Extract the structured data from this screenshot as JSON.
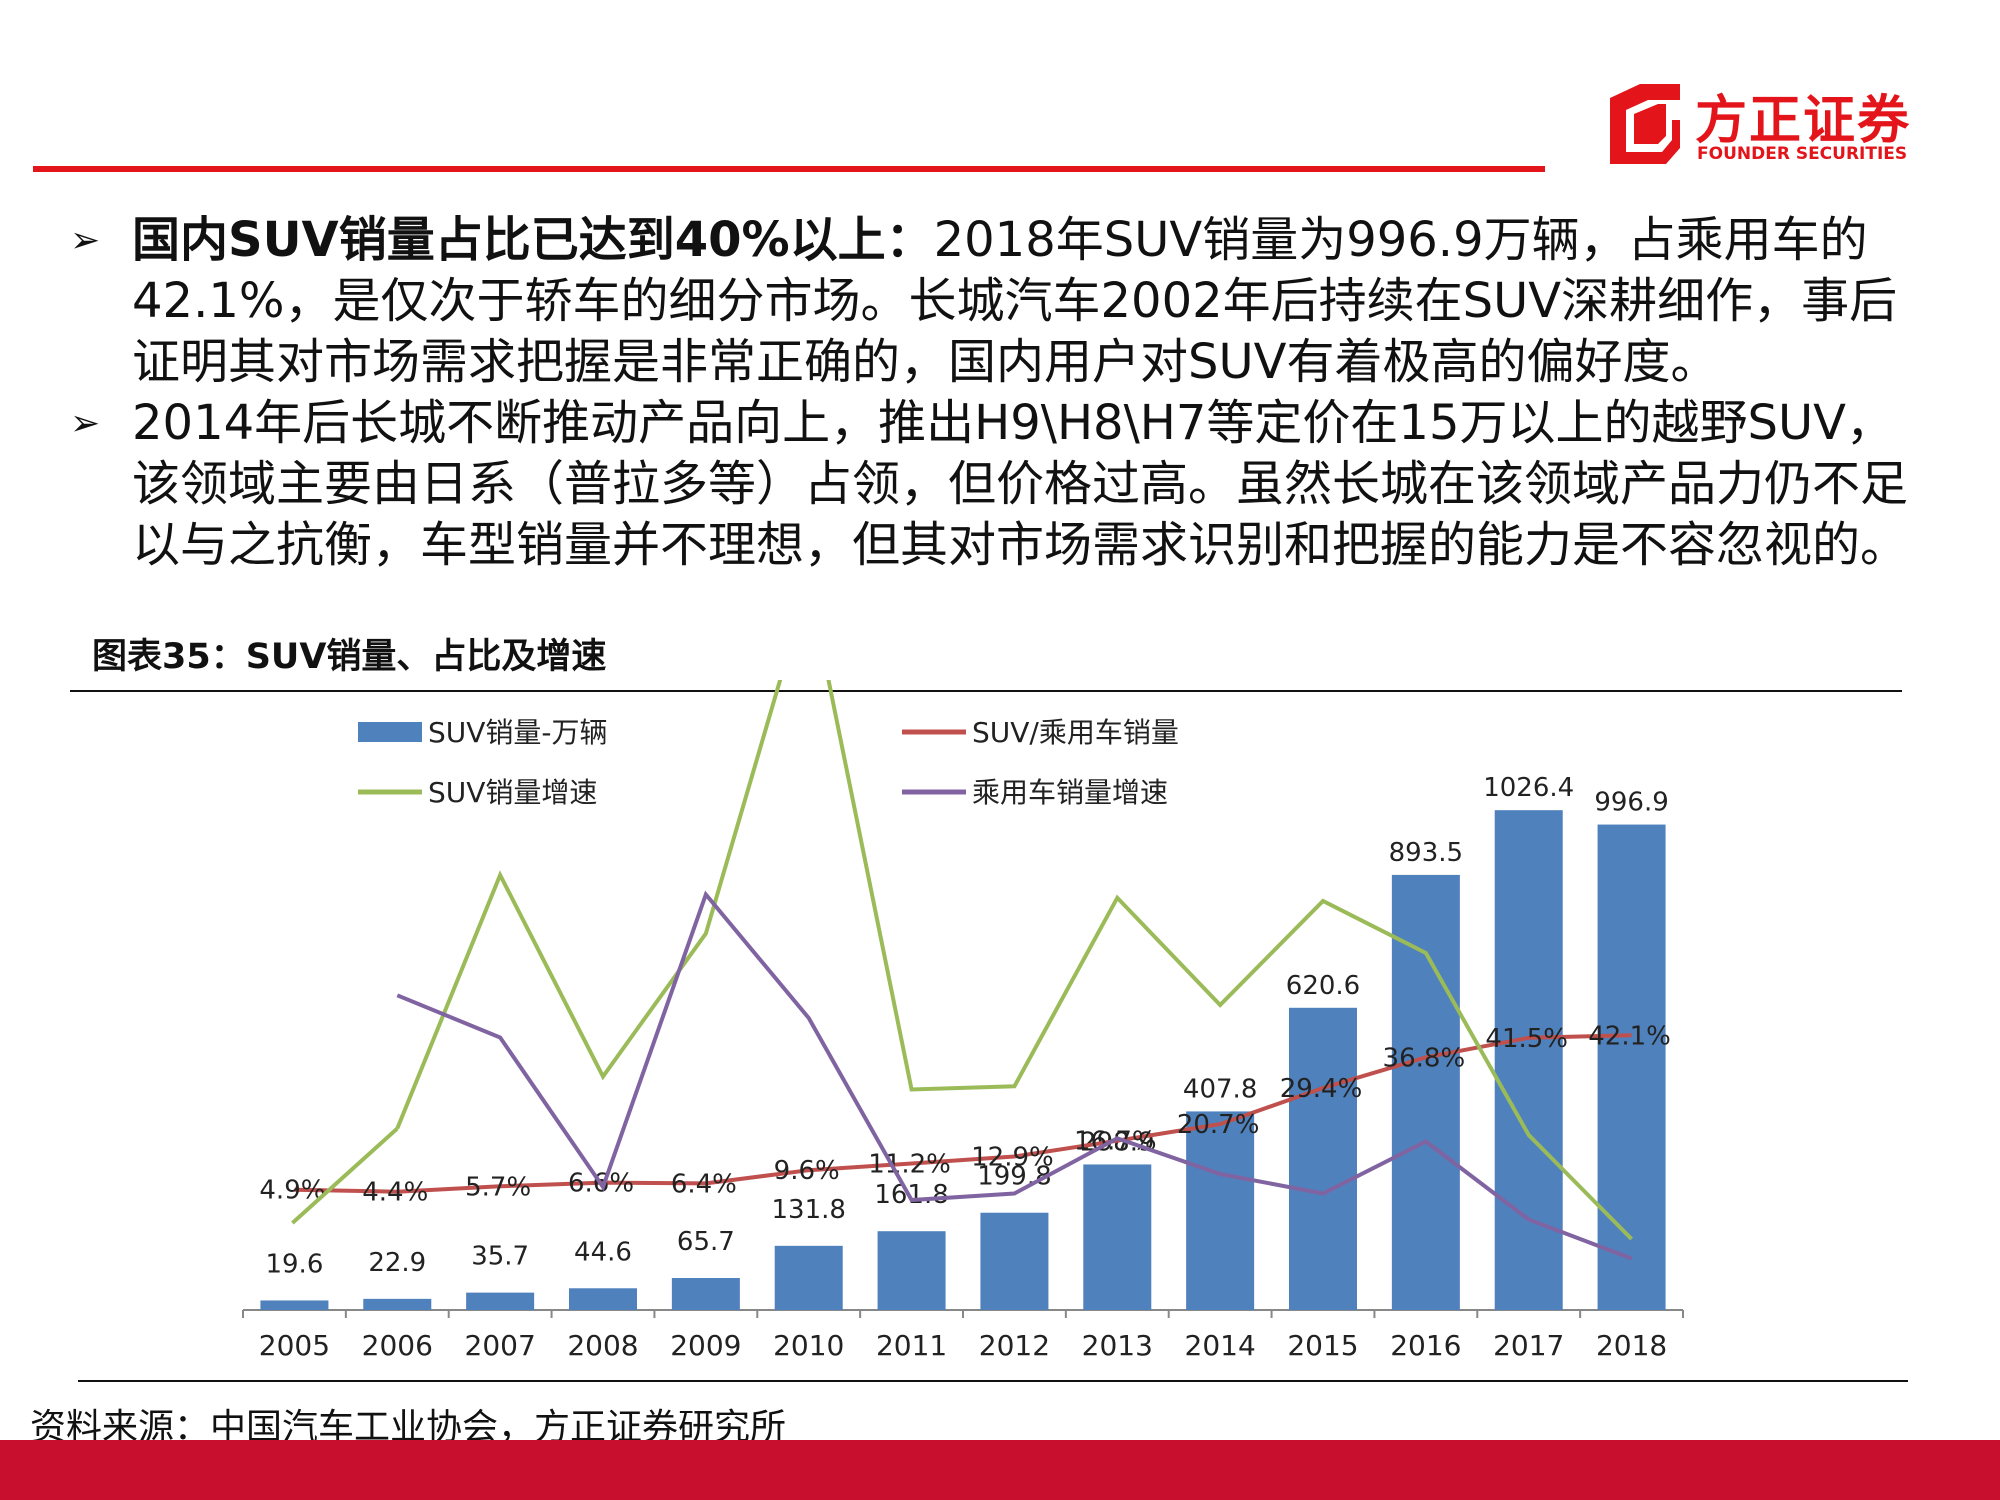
{
  "brand": {
    "name_cn": "方正证券",
    "name_en": "FOUNDER SECURITIES",
    "color": "#e3151b"
  },
  "bullets": [
    {
      "icon": "arrow-bullet-icon",
      "bold": "国内SUV销量占比已达到40%以上：",
      "text": "2018年SUV销量为996.9万辆，占乘用车的42.1%，是仅次于轿车的细分市场。长城汽车2002年后持续在SUV深耕细作，事后证明其对市场需求把握是非常正确的，国内用户对SUV有着极高的偏好度。"
    },
    {
      "icon": "arrow-bullet-icon",
      "bold": "",
      "text": "2014年后长城不断推动产品向上，推出H9\\H8\\H7等定价在15万以上的越野SUV，该领域主要由日系（普拉多等）占领，但价格过高。虽然长城在该领域产品力仍不足以与之抗衡，车型销量并不理想，但其对市场需求识别和把握的能力是不容忽视的。"
    }
  ],
  "figure_title": "图表35：SUV销量、占比及增速",
  "source": "资料来源：中国汽车工业协会，方正证券研究所",
  "colors": {
    "bar": "#4f81bd",
    "ratio_line": "#c0504d",
    "suv_growth_line": "#9bbb59",
    "pv_growth_line": "#8064a2",
    "footer": "#c8102e"
  },
  "chart_data": {
    "type": "bar",
    "categories": [
      "2005",
      "2006",
      "2007",
      "2008",
      "2009",
      "2010",
      "2011",
      "2012",
      "2013",
      "2014",
      "2015",
      "2016",
      "2017",
      "2018"
    ],
    "bar_series": {
      "name": "SUV销量-万辆",
      "values": [
        19.6,
        22.9,
        35.7,
        44.6,
        65.7,
        131.8,
        161.8,
        199.8,
        298.9,
        407.8,
        620.6,
        893.5,
        1026.4,
        996.9
      ],
      "labels": [
        "19.6",
        "22.9",
        "35.7",
        "44.6",
        "65.7",
        "131.8",
        "161.8",
        "199.8",
        "298.9",
        "407.8",
        "620.6",
        "893.5",
        "1026.4",
        "996.9"
      ]
    },
    "line_series": [
      {
        "name": "SUV/乘用车销量",
        "values": [
          4.9,
          4.4,
          5.7,
          6.6,
          6.4,
          9.6,
          11.2,
          12.9,
          16.7,
          20.7,
          29.4,
          36.8,
          41.5,
          42.1
        ],
        "labels": [
          "4.9%",
          "4.4%",
          "5.7%",
          "6.6%",
          "6.4%",
          "9.6%",
          "11.2%",
          "12.9%",
          "16.7%",
          "20.7%",
          "29.4%",
          "36.8%",
          "41.5%",
          "42.1%"
        ]
      },
      {
        "name": "SUV销量增速",
        "values": [
          null,
          17,
          56,
          25,
          47,
          101,
          23,
          23.5,
          52.5,
          36,
          52,
          44,
          16,
          0
        ]
      },
      {
        "name": "乘用车销量增速",
        "values": [
          null,
          37.5,
          31,
          8,
          53,
          34,
          6,
          7,
          15.5,
          10,
          7,
          15,
          3,
          -3
        ]
      }
    ],
    "legend_position": "top",
    "grid": false
  }
}
